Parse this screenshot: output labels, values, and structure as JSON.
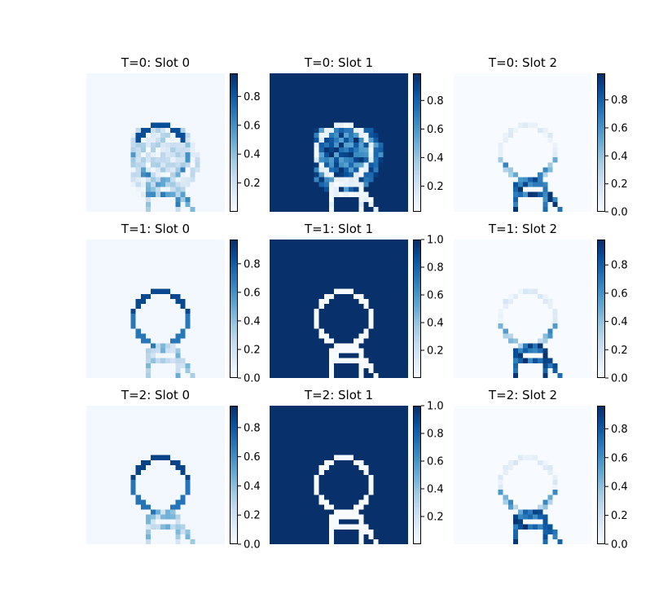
{
  "figure": {
    "colormap": "Blues",
    "grid_size": 28
  },
  "chart_data": {
    "type": "heatmap",
    "colorbar_ticks": {
      "cb0": [
        "0.2",
        "0.4",
        "0.6",
        "0.8"
      ],
      "cb1": [
        "0.2",
        "0.4",
        "0.6",
        "0.8"
      ],
      "cb2": [
        "0.0",
        "0.2",
        "0.4",
        "0.6",
        "0.8"
      ],
      "cb3": [
        "0.0",
        "0.2",
        "0.4",
        "0.6",
        "0.8"
      ],
      "cb4": [
        "0.2",
        "0.4",
        "0.6",
        "0.8",
        "1.0"
      ],
      "cb5": [
        "0.0",
        "0.2",
        "0.4",
        "0.6",
        "0.8"
      ],
      "cb6": [
        "0.0",
        "0.2",
        "0.4",
        "0.6",
        "0.8"
      ],
      "cb7": [
        "0.2",
        "0.4",
        "0.6",
        "0.8",
        "1.0"
      ],
      "cb8": [
        "0.0",
        "0.2",
        "0.4",
        "0.6",
        "0.8"
      ]
    },
    "panels": [
      {
        "title": "T=0: Slot 0",
        "row": 0,
        "col": 0,
        "vmin": 0.0,
        "vmax": 0.96,
        "background": 0.02,
        "pattern": "diffuse_outline"
      },
      {
        "title": "T=0: Slot 1",
        "row": 0,
        "col": 1,
        "vmin": 0.02,
        "vmax": 0.99,
        "background": 0.99,
        "pattern": "noisy_inverse"
      },
      {
        "title": "T=0: Slot 2",
        "row": 0,
        "col": 2,
        "vmin": 0.0,
        "vmax": 0.99,
        "background": 0.0,
        "pattern": "lower_strokes"
      },
      {
        "title": "T=1: Slot 0",
        "row": 1,
        "col": 0,
        "vmin": 0.0,
        "vmax": 0.97,
        "background": 0.02,
        "pattern": "upper_ring"
      },
      {
        "title": "T=1: Slot 1",
        "row": 1,
        "col": 1,
        "vmin": 0.0,
        "vmax": 1.0,
        "background": 1.0,
        "pattern": "inverse"
      },
      {
        "title": "T=1: Slot 2",
        "row": 1,
        "col": 2,
        "vmin": 0.0,
        "vmax": 0.98,
        "background": 0.0,
        "pattern": "lower_strokes"
      },
      {
        "title": "T=2: Slot 0",
        "row": 2,
        "col": 0,
        "vmin": 0.0,
        "vmax": 0.95,
        "background": 0.02,
        "pattern": "upper_ring"
      },
      {
        "title": "T=2: Slot 1",
        "row": 2,
        "col": 1,
        "vmin": 0.0,
        "vmax": 1.0,
        "background": 1.0,
        "pattern": "inverse"
      },
      {
        "title": "T=2: Slot 2",
        "row": 2,
        "col": 2,
        "vmin": 0.0,
        "vmax": 0.96,
        "background": 0.0,
        "pattern": "lower_strokes"
      }
    ]
  }
}
